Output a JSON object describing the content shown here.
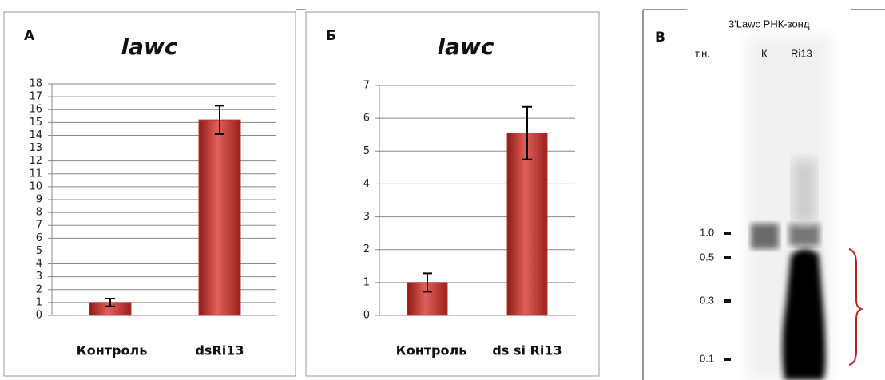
{
  "chart_data": [
    {
      "type": "bar",
      "panel_label": "А",
      "title": "lawc",
      "categories": [
        "Контроль",
        "dsRi13"
      ],
      "values": [
        1,
        15.2
      ],
      "errors": [
        0.3,
        1.1
      ],
      "color": "#c0312d",
      "ylim": [
        0,
        18
      ],
      "yticks": [
        0,
        1,
        2,
        3,
        4,
        5,
        6,
        7,
        8,
        9,
        10,
        11,
        12,
        13,
        14,
        15,
        16,
        17,
        18
      ],
      "grid": true
    },
    {
      "type": "bar",
      "panel_label": "Б",
      "title": "lawc",
      "categories": [
        "Контроль",
        "ds si Ri13"
      ],
      "values": [
        1.0,
        5.55
      ],
      "errors": [
        0.28,
        0.8
      ],
      "color": "#c0312d",
      "ylim": [
        0,
        7
      ],
      "yticks": [
        0,
        1,
        2,
        3,
        4,
        5,
        6,
        7
      ],
      "grid": true
    }
  ],
  "blot": {
    "panel_label": "В",
    "title": "3'Lawc РНК-зонд",
    "unit": "т.н.",
    "lanes": [
      "К",
      "Ri13"
    ],
    "markers": [
      "1.0",
      "0.5",
      "0.3",
      "0.1"
    ]
  }
}
